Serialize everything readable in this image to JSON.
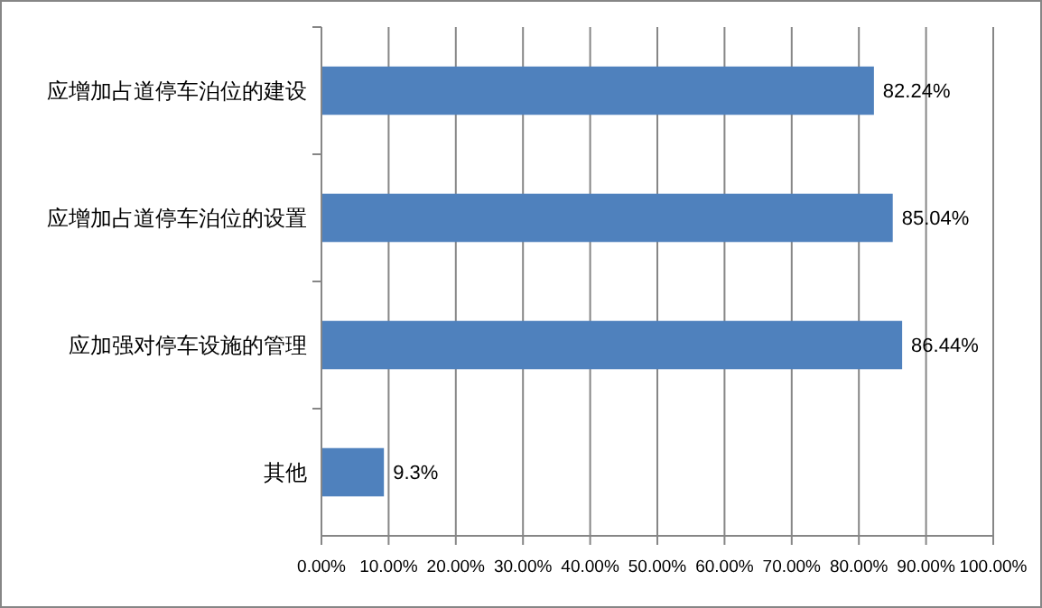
{
  "chart_data": {
    "type": "bar",
    "orientation": "horizontal",
    "categories": [
      "应增加占道停车泊位的建设",
      "应增加占道停车泊位的设置",
      "应加强对停车设施的管理",
      "其他"
    ],
    "values": [
      82.24,
      85.04,
      86.44,
      9.3
    ],
    "value_labels": [
      "82.24%",
      "85.04%",
      "86.44%",
      "9.3%"
    ],
    "color": "#4f81bd",
    "xlim": [
      0,
      100
    ],
    "xticks": [
      {
        "value": 0,
        "label": "0.00%"
      },
      {
        "value": 10,
        "label": "10.00%"
      },
      {
        "value": 20,
        "label": "20.00%"
      },
      {
        "value": 30,
        "label": "30.00%"
      },
      {
        "value": 40,
        "label": "40.00%"
      },
      {
        "value": 50,
        "label": "50.00%"
      },
      {
        "value": 60,
        "label": "60.00%"
      },
      {
        "value": 70,
        "label": "70.00%"
      },
      {
        "value": 80,
        "label": "80.00%"
      },
      {
        "value": 90,
        "label": "90.00%"
      },
      {
        "value": 100,
        "label": "100.00%"
      }
    ],
    "grid": "x"
  }
}
